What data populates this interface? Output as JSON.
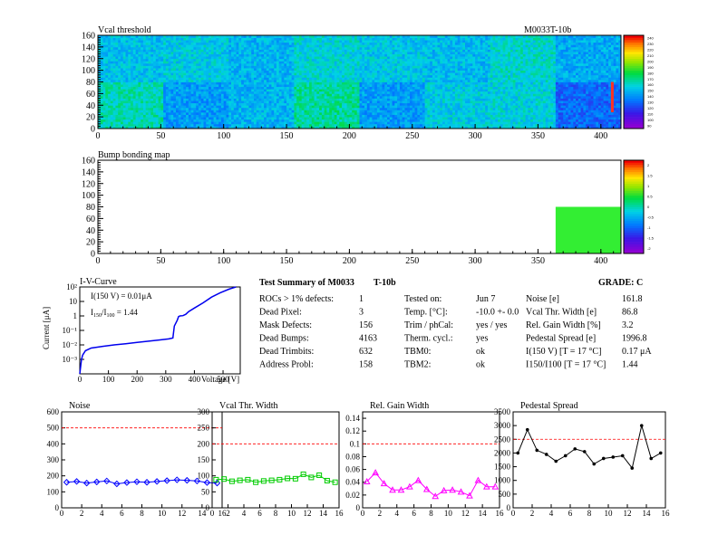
{
  "module_id": "M0033T-10b",
  "vcal": {
    "title": "Vcal threshold",
    "x_ticks": [
      "0",
      "50",
      "100",
      "150",
      "200",
      "250",
      "300",
      "350",
      "400"
    ],
    "y_ticks": [
      "0",
      "20",
      "40",
      "60",
      "80",
      "100",
      "120",
      "140",
      "160"
    ],
    "palette_labels": [
      "90",
      "100",
      "110",
      "120",
      "130",
      "140",
      "150",
      "160",
      "170",
      "180",
      "190",
      "200",
      "210",
      "220",
      "230",
      "240"
    ],
    "block_base": [
      [
        0.42,
        0.44,
        0.4,
        0.46,
        0.43,
        0.41,
        0.47,
        0.38
      ],
      [
        0.5,
        0.36,
        0.4,
        0.52,
        0.36,
        0.44,
        0.45,
        0.28
      ]
    ],
    "hot_column_x": 408
  },
  "bump": {
    "title": "Bump bonding map",
    "x_ticks": [
      "0",
      "50",
      "100",
      "150",
      "200",
      "250",
      "300",
      "350",
      "400"
    ],
    "y_ticks": [
      "0",
      "20",
      "40",
      "60",
      "80",
      "100",
      "120",
      "140",
      "160"
    ],
    "palette_labels": [
      "-2",
      "-1.5",
      "-1",
      "-0.5",
      "0",
      "0.5",
      "1",
      "1.5",
      "2"
    ],
    "filled_region": {
      "x0": 364,
      "x1": 416,
      "y0": 0,
      "y1": 80
    }
  },
  "iv": {
    "title": "I-V-Curve",
    "ylabel": "Current [μA]",
    "xlabel": "Voltage [V]",
    "annot1": "I(150 V) = 0.01μA",
    "annot2_main": "I",
    "annot2_sub1": "150",
    "annot2_mid": "/I",
    "annot2_sub2": "100",
    "annot2_end": " = 1.44",
    "x_ticks": [
      "0",
      "100",
      "200",
      "300",
      "400",
      "500"
    ],
    "y_ticks": [
      "10⁻³",
      "10⁻²",
      "10⁻¹",
      "1",
      "10",
      "10²"
    ],
    "chart_data": {
      "type": "line",
      "x": [
        0,
        3,
        6,
        10,
        20,
        40,
        80,
        120,
        160,
        200,
        240,
        280,
        310,
        325,
        330,
        340,
        345,
        350,
        360,
        370,
        380,
        400,
        430,
        460,
        490,
        520,
        545
      ],
      "y": [
        0.0001,
        0.0003,
        0.001,
        0.002,
        0.004,
        0.006,
        0.008,
        0.01,
        0.012,
        0.015,
        0.018,
        0.022,
        0.026,
        0.03,
        0.2,
        0.5,
        0.9,
        1.0,
        1.05,
        1.3,
        2.0,
        3.5,
        8,
        20,
        40,
        70,
        100
      ],
      "xlim": [
        0,
        560
      ],
      "ylog": true,
      "ylim": [
        0.0001,
        100
      ]
    }
  },
  "summary": {
    "title_a": "Test Summary of M0033",
    "title_b": "T-10b",
    "grade": "GRADE:  C",
    "col1": [
      {
        "label": "ROCs > 1% defects:",
        "value": "1"
      },
      {
        "label": "Dead Pixel:",
        "value": "3"
      },
      {
        "label": "Mask Defects:",
        "value": "156"
      },
      {
        "label": "Dead Bumps:",
        "value": "4163"
      },
      {
        "label": "Dead Trimbits:",
        "value": "632"
      },
      {
        "label": "Address Probl:",
        "value": "158"
      }
    ],
    "col2": [
      {
        "label": "Tested on:",
        "value": "Jun 7"
      },
      {
        "label": "Temp. [°C]:",
        "value": "-10.0 +- 0.0"
      },
      {
        "label": "Trim / phCal:",
        "value": "yes / yes"
      },
      {
        "label": "Therm. cycl.:",
        "value": "yes"
      },
      {
        "label": "TBM0:",
        "value": "ok"
      },
      {
        "label": "TBM2:",
        "value": "ok"
      }
    ],
    "col3": [
      {
        "label": "Noise [e]",
        "value": "161.8"
      },
      {
        "label": "Vcal Thr. Width [e]",
        "value": "86.8"
      },
      {
        "label": "Rel. Gain Width [%]",
        "value": "3.2"
      },
      {
        "label": "Pedestal Spread [e]",
        "value": "1996.8"
      },
      {
        "label": "I(150 V) [T = 17 °C]",
        "value": "0.17 μA"
      },
      {
        "label": "I150/I100  [T = 17 °C]",
        "value": "1.44"
      }
    ]
  },
  "chart_data": [
    {
      "type": "line",
      "title": "Noise",
      "x": [
        0,
        1,
        2,
        3,
        4,
        5,
        6,
        7,
        8,
        9,
        10,
        11,
        12,
        13,
        14,
        15
      ],
      "values": [
        160,
        165,
        155,
        162,
        168,
        150,
        158,
        163,
        160,
        165,
        170,
        175,
        172,
        168,
        158,
        155
      ],
      "xlim": [
        0,
        16
      ],
      "ylim": [
        0,
        600
      ],
      "threshold": 500,
      "color": "#0000ff",
      "marker": "diamond",
      "x_ticks": [
        "0",
        "2",
        "4",
        "6",
        "8",
        "10",
        "12",
        "14",
        "16"
      ],
      "y_ticks": [
        "0",
        "100",
        "200",
        "300",
        "400",
        "500",
        "600"
      ]
    },
    {
      "type": "line",
      "title": "Vcal Thr. Width",
      "x": [
        0,
        1,
        2,
        3,
        4,
        5,
        6,
        7,
        8,
        9,
        10,
        11,
        12,
        13,
        14,
        15
      ],
      "values": [
        88,
        90,
        83,
        86,
        88,
        80,
        84,
        86,
        88,
        92,
        91,
        105,
        95,
        102,
        85,
        80
      ],
      "xlim": [
        0,
        16
      ],
      "ylim": [
        0,
        300
      ],
      "threshold": 200,
      "color": "#00cc00",
      "marker": "square",
      "x_ticks": [
        "0",
        "2",
        "4",
        "6",
        "8",
        "10",
        "12",
        "14",
        "16"
      ],
      "y_ticks": [
        "0",
        "50",
        "100",
        "150",
        "200",
        "250",
        "300"
      ]
    },
    {
      "type": "line",
      "title": "Rel. Gain Width",
      "x": [
        0,
        1,
        2,
        3,
        4,
        5,
        6,
        7,
        8,
        9,
        10,
        11,
        12,
        13,
        14,
        15
      ],
      "values": [
        0.041,
        0.055,
        0.038,
        0.028,
        0.028,
        0.033,
        0.043,
        0.029,
        0.018,
        0.027,
        0.028,
        0.025,
        0.019,
        0.043,
        0.033,
        0.033
      ],
      "xlim": [
        0,
        16
      ],
      "ylim": [
        0,
        0.15
      ],
      "threshold": 0.1,
      "color": "#ff00ff",
      "marker": "triangle",
      "x_ticks": [
        "0",
        "2",
        "4",
        "6",
        "8",
        "10",
        "12",
        "14",
        "16"
      ],
      "y_ticks": [
        "0",
        "0.02",
        "0.04",
        "0.06",
        "0.08",
        "0.1",
        "0.12",
        "0.14"
      ]
    },
    {
      "type": "line",
      "title": "Pedestal Spread",
      "x": [
        0,
        1,
        2,
        3,
        4,
        5,
        6,
        7,
        8,
        9,
        10,
        11,
        12,
        13,
        14,
        15
      ],
      "values": [
        2000,
        2850,
        2100,
        1950,
        1700,
        1900,
        2150,
        2050,
        1600,
        1800,
        1850,
        1900,
        1450,
        3000,
        1800,
        2000
      ],
      "xlim": [
        0,
        16
      ],
      "ylim": [
        0,
        3500
      ],
      "threshold": 2500,
      "color": "#000000",
      "marker": "dot",
      "x_ticks": [
        "0",
        "2",
        "4",
        "6",
        "8",
        "10",
        "12",
        "14",
        "16"
      ],
      "y_ticks": [
        "0",
        "500",
        "1000",
        "1500",
        "2000",
        "2500",
        "3000",
        "3500"
      ]
    }
  ]
}
